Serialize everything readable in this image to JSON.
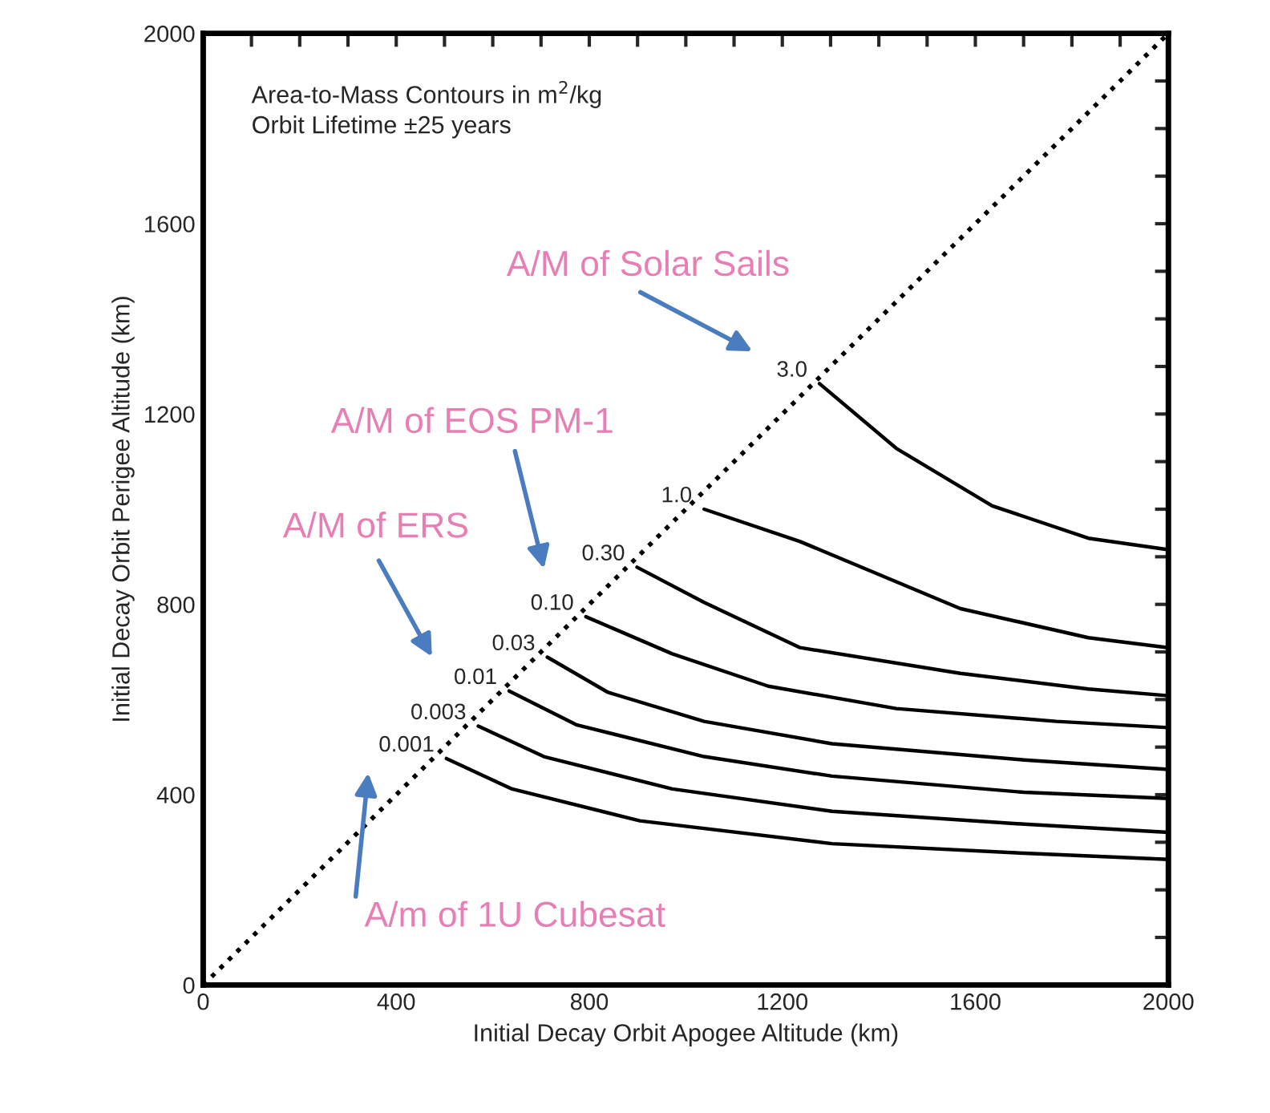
{
  "chart_data": {
    "type": "line",
    "xlabel": "Initial Decay Orbit Apogee Altitude (km)",
    "ylabel": "Initial Decay Orbit Perigee Altitude (km)",
    "xlim": [
      0,
      2000
    ],
    "ylim": [
      0,
      2000
    ],
    "xticks": [
      0,
      {
        "value": 100,
        "label": null
      },
      {
        "value": 200,
        "label": null
      },
      {
        "value": 300,
        "label": null
      },
      400,
      {
        "value": 500,
        "label": null
      },
      {
        "value": 600,
        "label": null
      },
      {
        "value": 700,
        "label": null
      },
      800,
      {
        "value": 900,
        "label": null
      },
      {
        "value": 1000,
        "label": null
      },
      {
        "value": 1100,
        "label": null
      },
      1200,
      {
        "value": 1300,
        "label": null
      },
      {
        "value": 1400,
        "label": null
      },
      {
        "value": 1500,
        "label": null
      },
      1600,
      {
        "value": 1700,
        "label": null
      },
      {
        "value": 1800,
        "label": null
      },
      {
        "value": 1900,
        "label": null
      },
      2000
    ],
    "yticks": [
      0,
      {
        "value": 100,
        "label": null
      },
      {
        "value": 200,
        "label": null
      },
      {
        "value": 300,
        "label": null
      },
      400,
      {
        "value": 500,
        "label": null
      },
      {
        "value": 600,
        "label": null
      },
      {
        "value": 700,
        "label": null
      },
      800,
      {
        "value": 900,
        "label": null
      },
      {
        "value": 1000,
        "label": null
      },
      {
        "value": 1100,
        "label": null
      },
      1200,
      {
        "value": 1300,
        "label": null
      },
      {
        "value": 1400,
        "label": null
      },
      {
        "value": 1500,
        "label": null
      },
      1600,
      {
        "value": 1700,
        "label": null
      },
      {
        "value": 1800,
        "label": null
      },
      {
        "value": 1900,
        "label": null
      },
      2000
    ],
    "grid": false,
    "legend": false,
    "series": [
      {
        "color": "#000000",
        "line_style": "dotted",
        "x": [
          0,
          2000
        ],
        "values": [
          0,
          2000
        ]
      },
      {
        "name": "3.0",
        "color": "#000000",
        "x": [
          1277,
          1436,
          1635,
          1834,
          2000
        ],
        "values": [
          1264,
          1128,
          1007,
          939,
          915
        ]
      },
      {
        "name": "1.0",
        "color": "#000000",
        "x": [
          1038,
          1237,
          1569,
          1834,
          2000
        ],
        "values": [
          1000,
          932,
          791,
          730,
          709
        ]
      },
      {
        "name": "0.30",
        "color": "#000000",
        "x": [
          899,
          1038,
          1237,
          1569,
          1834,
          2000
        ],
        "values": [
          878,
          804,
          709,
          655,
          622,
          608
        ]
      },
      {
        "name": "0.10",
        "color": "#000000",
        "x": [
          793,
          972,
          1171,
          1436,
          1768,
          2000
        ],
        "values": [
          774,
          696,
          628,
          581,
          554,
          541
        ]
      },
      {
        "name": "0.03",
        "color": "#000000",
        "x": [
          713,
          839,
          1038,
          1303,
          1701,
          2000
        ],
        "values": [
          689,
          615,
          554,
          507,
          473,
          453
        ]
      },
      {
        "name": "0.01",
        "color": "#000000",
        "x": [
          634,
          773,
          1038,
          1303,
          1701,
          2000
        ],
        "values": [
          618,
          547,
          480,
          439,
          405,
          392
        ]
      },
      {
        "name": "0.003",
        "color": "#000000",
        "x": [
          570,
          706,
          972,
          1303,
          1701,
          2000
        ],
        "values": [
          544,
          480,
          412,
          365,
          338,
          321
        ]
      },
      {
        "name": "0.001",
        "color": "#000000",
        "x": [
          504,
          640,
          905,
          1303,
          1701,
          2000
        ],
        "values": [
          476,
          412,
          345,
          297,
          277,
          264
        ]
      }
    ],
    "annotations": [
      "Area-to-Mass Contours in m$^{2}$/kg\nOrbit Lifetime ±25 years",
      "A/M of Solar Sails",
      "A/M of EOS PM-1",
      "A/M of ERS",
      "A/m of 1U Cubesat"
    ]
  }
}
